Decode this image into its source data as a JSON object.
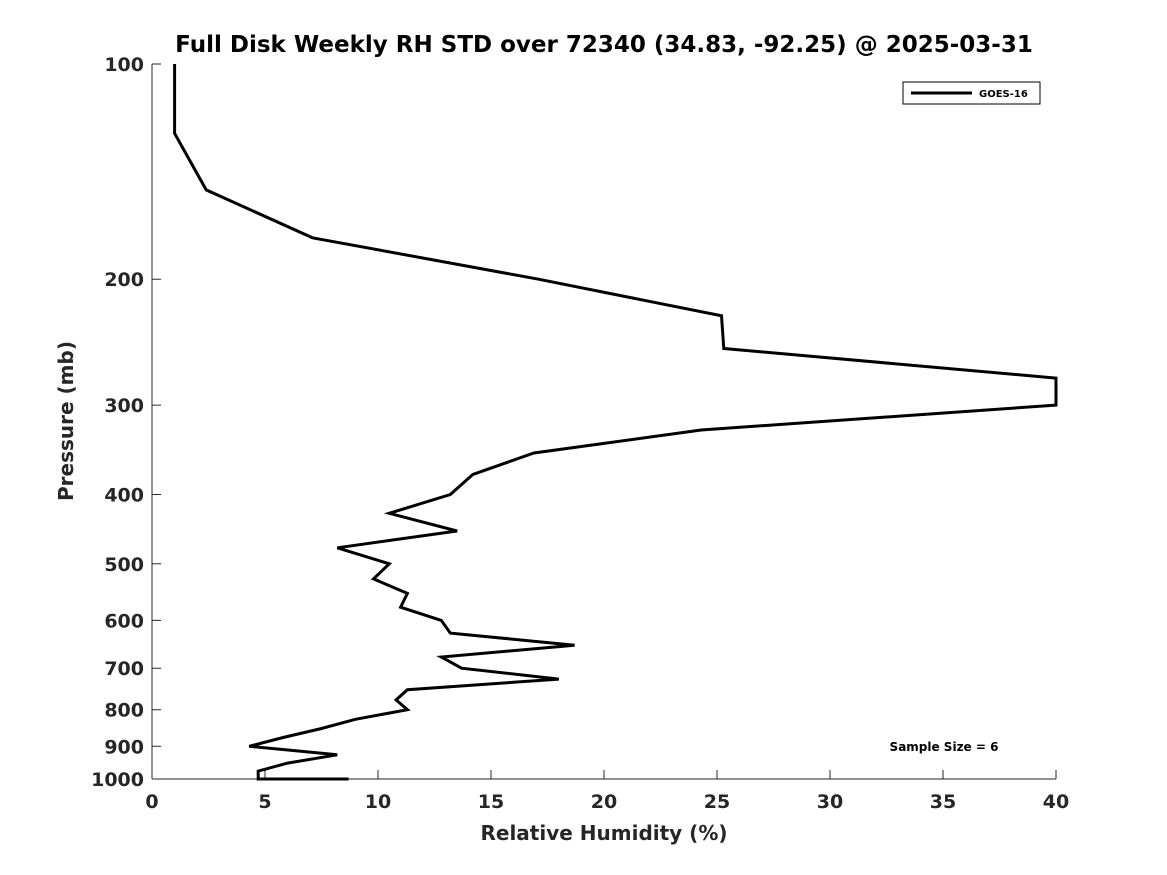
{
  "chart_data": {
    "type": "line",
    "title": "Full Disk Weekly RH STD over 72340 (34.83, -92.25) @ 2025-03-31",
    "xlabel": "Relative Humidity (%)",
    "ylabel": "Pressure (mb)",
    "xlim": [
      0,
      40
    ],
    "ylim": [
      100,
      1000
    ],
    "y_scale": "log",
    "y_direction": "reversed",
    "x_ticks": [
      0,
      5,
      10,
      15,
      20,
      25,
      30,
      35,
      40
    ],
    "y_ticks": [
      100,
      200,
      300,
      400,
      500,
      600,
      700,
      800,
      900,
      1000
    ],
    "grid": false,
    "legend": {
      "position": "top-right",
      "entries": [
        "GOES-16"
      ]
    },
    "annotation": "Sample Size = 6",
    "series": [
      {
        "name": "GOES-16",
        "color": "#000000",
        "points": [
          [
            1.0,
            100
          ],
          [
            1.0,
            125
          ],
          [
            2.4,
            150
          ],
          [
            7.1,
            175
          ],
          [
            17.1,
            200
          ],
          [
            25.2,
            225
          ],
          [
            25.3,
            250
          ],
          [
            40.0,
            275
          ],
          [
            40.0,
            300
          ],
          [
            24.3,
            325
          ],
          [
            16.9,
            350
          ],
          [
            14.2,
            375
          ],
          [
            13.2,
            400
          ],
          [
            10.5,
            425
          ],
          [
            13.5,
            450
          ],
          [
            8.2,
            475
          ],
          [
            10.5,
            500
          ],
          [
            9.8,
            525
          ],
          [
            11.3,
            550
          ],
          [
            11.0,
            575
          ],
          [
            12.8,
            600
          ],
          [
            13.2,
            625
          ],
          [
            18.7,
            650
          ],
          [
            12.8,
            675
          ],
          [
            13.7,
            700
          ],
          [
            18.0,
            725
          ],
          [
            11.3,
            750
          ],
          [
            10.8,
            775
          ],
          [
            11.3,
            800
          ],
          [
            9.0,
            825
          ],
          [
            7.5,
            850
          ],
          [
            5.8,
            875
          ],
          [
            4.3,
            900
          ],
          [
            8.2,
            925
          ],
          [
            6.0,
            950
          ],
          [
            4.7,
            975
          ],
          [
            4.7,
            1000
          ],
          [
            7.3,
            1000
          ],
          [
            8.7,
            1000
          ],
          [
            7.0,
            1000
          ]
        ]
      }
    ]
  }
}
